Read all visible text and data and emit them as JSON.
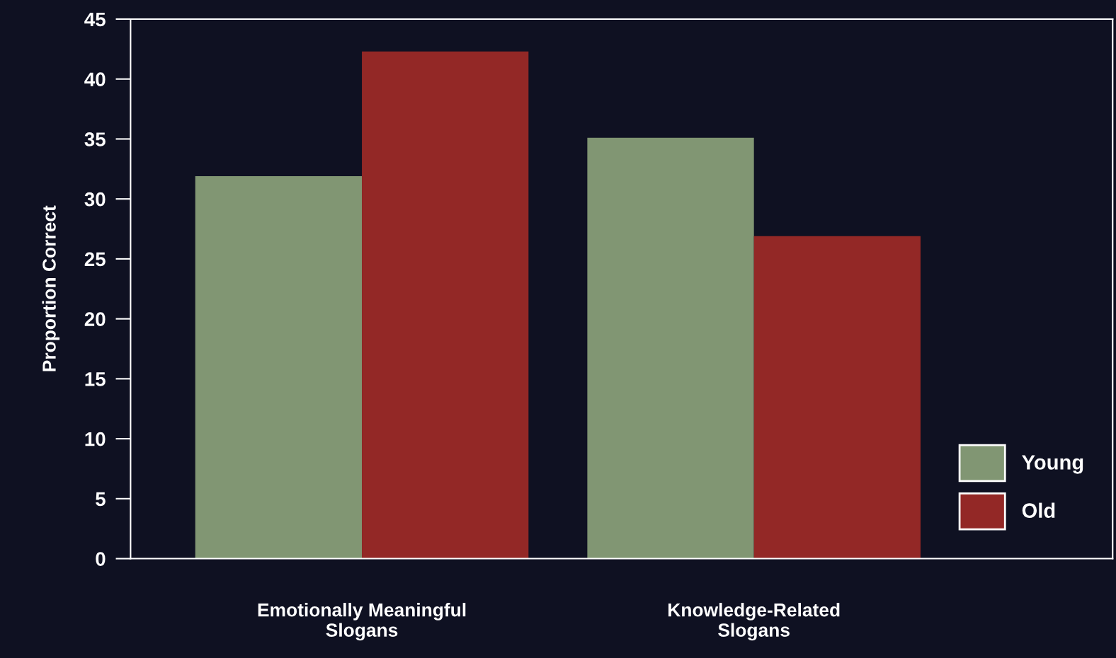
{
  "chart_data": {
    "type": "bar",
    "ylabel": "Proportion Correct",
    "categories": [
      "Emotionally Meaningful\nSlogans",
      "Knowledge-Related\nSlogans"
    ],
    "series": [
      {
        "name": "Young",
        "color": "#819673",
        "values": [
          31.9,
          35.1
        ]
      },
      {
        "name": "Old",
        "color": "#932826",
        "values": [
          42.3,
          26.9
        ]
      }
    ],
    "ylim": [
      0,
      45
    ],
    "yticks": [
      0,
      5,
      10,
      15,
      20,
      25,
      30,
      35,
      40,
      45
    ],
    "grid": false,
    "legend": "bottom right"
  }
}
